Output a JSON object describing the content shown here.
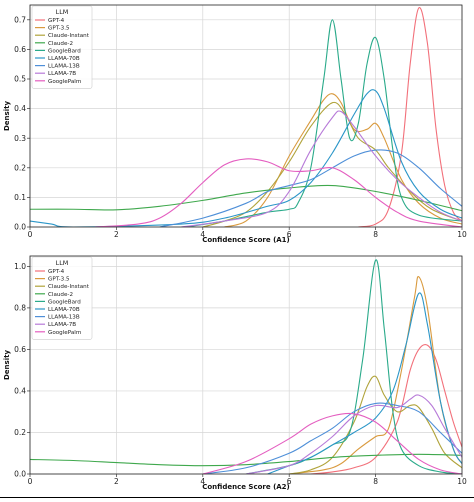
{
  "chart_data": [
    {
      "type": "line",
      "xlabel": "Confidence Score (A1)",
      "ylabel": "Density",
      "xlim": [
        0,
        10
      ],
      "ylim": [
        0,
        0.75
      ],
      "xticks": [
        "0",
        "2",
        "4",
        "6",
        "8",
        "10"
      ],
      "yticks": [
        "0.0",
        "0.1",
        "0.2",
        "0.3",
        "0.4",
        "0.5",
        "0.6",
        "0.7"
      ],
      "grid": true,
      "legend": {
        "title": "LLM",
        "placement": "top-left"
      },
      "series": [
        {
          "name": "GPT-4",
          "color": "#f2707a",
          "points": [
            [
              7.6,
              0
            ],
            [
              8.0,
              0.01
            ],
            [
              8.3,
              0.06
            ],
            [
              8.6,
              0.25
            ],
            [
              8.8,
              0.55
            ],
            [
              9.0,
              0.74
            ],
            [
              9.2,
              0.62
            ],
            [
              9.4,
              0.33
            ],
            [
              9.6,
              0.14
            ],
            [
              9.8,
              0.05
            ],
            [
              10,
              0.02
            ]
          ]
        },
        {
          "name": "GPT-3.5",
          "color": "#d99a3e",
          "points": [
            [
              4.5,
              0
            ],
            [
              5.0,
              0.02
            ],
            [
              5.5,
              0.1
            ],
            [
              6.0,
              0.24
            ],
            [
              6.5,
              0.36
            ],
            [
              6.8,
              0.43
            ],
            [
              7.0,
              0.45
            ],
            [
              7.2,
              0.42
            ],
            [
              7.5,
              0.33
            ],
            [
              7.8,
              0.33
            ],
            [
              8.0,
              0.35
            ],
            [
              8.2,
              0.3
            ],
            [
              8.6,
              0.16
            ],
            [
              9.0,
              0.08
            ],
            [
              9.5,
              0.03
            ],
            [
              10,
              0.01
            ]
          ]
        },
        {
          "name": "Claude-Instant",
          "color": "#b0a33a",
          "points": [
            [
              4.0,
              0
            ],
            [
              4.5,
              0.02
            ],
            [
              5.0,
              0.05
            ],
            [
              5.5,
              0.12
            ],
            [
              6.0,
              0.22
            ],
            [
              6.5,
              0.34
            ],
            [
              7.0,
              0.42
            ],
            [
              7.3,
              0.38
            ],
            [
              7.6,
              0.3
            ],
            [
              8.0,
              0.26
            ],
            [
              8.3,
              0.2
            ],
            [
              8.8,
              0.12
            ],
            [
              9.3,
              0.06
            ],
            [
              10,
              0.02
            ]
          ]
        },
        {
          "name": "Claude-2",
          "color": "#3fa84d",
          "points": [
            [
              0,
              0.06
            ],
            [
              1.0,
              0.06
            ],
            [
              2.0,
              0.058
            ],
            [
              3.0,
              0.07
            ],
            [
              4.0,
              0.09
            ],
            [
              5.0,
              0.115
            ],
            [
              6.0,
              0.132
            ],
            [
              7.0,
              0.14
            ],
            [
              8.0,
              0.12
            ],
            [
              9.0,
              0.09
            ],
            [
              10,
              0.055
            ]
          ]
        },
        {
          "name": "GoogleBard",
          "color": "#2aaa8a",
          "points": [
            [
              3.6,
              0
            ],
            [
              4.5,
              0.02
            ],
            [
              5.5,
              0.05
            ],
            [
              6.0,
              0.06
            ],
            [
              6.2,
              0.08
            ],
            [
              6.5,
              0.2
            ],
            [
              6.8,
              0.5
            ],
            [
              7.0,
              0.7
            ],
            [
              7.2,
              0.5
            ],
            [
              7.4,
              0.3
            ],
            [
              7.6,
              0.35
            ],
            [
              7.8,
              0.55
            ],
            [
              8.0,
              0.64
            ],
            [
              8.2,
              0.5
            ],
            [
              8.4,
              0.26
            ],
            [
              8.6,
              0.1
            ],
            [
              9.0,
              0.04
            ],
            [
              10,
              0.02
            ]
          ]
        },
        {
          "name": "LLAMA-70B",
          "color": "#2b96c8",
          "points": [
            [
              0,
              0.02
            ],
            [
              0.5,
              0.01
            ],
            [
              1.0,
              0
            ],
            [
              3.5,
              0.01
            ],
            [
              4.5,
              0.03
            ],
            [
              5.5,
              0.07
            ],
            [
              6.0,
              0.09
            ],
            [
              6.5,
              0.15
            ],
            [
              7.0,
              0.25
            ],
            [
              7.5,
              0.38
            ],
            [
              7.8,
              0.45
            ],
            [
              8.0,
              0.46
            ],
            [
              8.2,
              0.4
            ],
            [
              8.6,
              0.22
            ],
            [
              9.0,
              0.12
            ],
            [
              9.5,
              0.06
            ],
            [
              10,
              0.03
            ]
          ]
        },
        {
          "name": "LLAMA-13B",
          "color": "#4e8fd8",
          "points": [
            [
              3.0,
              0
            ],
            [
              4.0,
              0.03
            ],
            [
              5.0,
              0.08
            ],
            [
              5.5,
              0.12
            ],
            [
              6.0,
              0.14
            ],
            [
              6.5,
              0.16
            ],
            [
              7.0,
              0.2
            ],
            [
              7.5,
              0.24
            ],
            [
              8.0,
              0.26
            ],
            [
              8.5,
              0.25
            ],
            [
              9.0,
              0.2
            ],
            [
              9.5,
              0.13
            ],
            [
              10,
              0.07
            ]
          ]
        },
        {
          "name": "LLAMA-7B",
          "color": "#b77ad8",
          "points": [
            [
              3.5,
              0
            ],
            [
              4.5,
              0.02
            ],
            [
              5.5,
              0.05
            ],
            [
              6.0,
              0.12
            ],
            [
              6.5,
              0.26
            ],
            [
              7.0,
              0.37
            ],
            [
              7.2,
              0.39
            ],
            [
              7.5,
              0.34
            ],
            [
              8.0,
              0.24
            ],
            [
              8.5,
              0.16
            ],
            [
              9.0,
              0.1
            ],
            [
              9.5,
              0.05
            ],
            [
              10,
              0.02
            ]
          ]
        },
        {
          "name": "GooglePalm",
          "color": "#e45ec0",
          "points": [
            [
              1.5,
              0
            ],
            [
              2.5,
              0.01
            ],
            [
              3.0,
              0.03
            ],
            [
              3.5,
              0.08
            ],
            [
              4.0,
              0.15
            ],
            [
              4.5,
              0.21
            ],
            [
              5.0,
              0.23
            ],
            [
              5.5,
              0.22
            ],
            [
              6.0,
              0.19
            ],
            [
              6.5,
              0.19
            ],
            [
              7.0,
              0.2
            ],
            [
              7.5,
              0.16
            ],
            [
              8.0,
              0.1
            ],
            [
              8.5,
              0.05
            ],
            [
              9.0,
              0.02
            ],
            [
              10,
              0
            ]
          ]
        }
      ]
    },
    {
      "type": "line",
      "xlabel": "Confidence Score (A2)",
      "ylabel": "Density",
      "xlim": [
        0,
        10
      ],
      "ylim": [
        0,
        1.05
      ],
      "xticks": [
        "0",
        "2",
        "4",
        "6",
        "8",
        "10"
      ],
      "yticks": [
        "0.0",
        "0.2",
        "0.4",
        "0.6",
        "0.8",
        "1.0"
      ],
      "grid": true,
      "legend": {
        "title": "LLM",
        "placement": "top-left"
      },
      "series": [
        {
          "name": "GPT-4",
          "color": "#f2707a",
          "points": [
            [
              6.5,
              0
            ],
            [
              7.0,
              0.01
            ],
            [
              7.5,
              0.03
            ],
            [
              8.0,
              0.08
            ],
            [
              8.5,
              0.25
            ],
            [
              8.8,
              0.5
            ],
            [
              9.0,
              0.6
            ],
            [
              9.2,
              0.62
            ],
            [
              9.4,
              0.55
            ],
            [
              9.6,
              0.4
            ],
            [
              9.8,
              0.25
            ],
            [
              10,
              0.13
            ]
          ]
        },
        {
          "name": "GPT-3.5",
          "color": "#d99a3e",
          "points": [
            [
              6.0,
              0
            ],
            [
              6.8,
              0.02
            ],
            [
              7.2,
              0.05
            ],
            [
              7.6,
              0.12
            ],
            [
              8.0,
              0.18
            ],
            [
              8.3,
              0.22
            ],
            [
              8.6,
              0.5
            ],
            [
              8.9,
              0.85
            ],
            [
              9.0,
              0.95
            ],
            [
              9.2,
              0.8
            ],
            [
              9.5,
              0.35
            ],
            [
              9.8,
              0.12
            ],
            [
              10,
              0.05
            ]
          ]
        },
        {
          "name": "Claude-Instant",
          "color": "#b0a33a",
          "points": [
            [
              6.0,
              0
            ],
            [
              6.5,
              0.02
            ],
            [
              7.0,
              0.08
            ],
            [
              7.5,
              0.25
            ],
            [
              7.8,
              0.42
            ],
            [
              8.0,
              0.47
            ],
            [
              8.2,
              0.38
            ],
            [
              8.5,
              0.3
            ],
            [
              8.8,
              0.33
            ],
            [
              9.0,
              0.32
            ],
            [
              9.3,
              0.22
            ],
            [
              9.6,
              0.1
            ],
            [
              10,
              0.03
            ]
          ]
        },
        {
          "name": "Claude-2",
          "color": "#3fa84d",
          "points": [
            [
              0,
              0.07
            ],
            [
              1.0,
              0.065
            ],
            [
              2.0,
              0.055
            ],
            [
              3.0,
              0.045
            ],
            [
              4.0,
              0.04
            ],
            [
              5.0,
              0.045
            ],
            [
              6.0,
              0.06
            ],
            [
              7.0,
              0.08
            ],
            [
              8.0,
              0.09
            ],
            [
              9.0,
              0.095
            ],
            [
              10,
              0.09
            ]
          ]
        },
        {
          "name": "GoogleBard",
          "color": "#2aaa8a",
          "points": [
            [
              5.0,
              0
            ],
            [
              6.0,
              0.04
            ],
            [
              6.5,
              0.08
            ],
            [
              7.0,
              0.14
            ],
            [
              7.4,
              0.2
            ],
            [
              7.7,
              0.55
            ],
            [
              8.0,
              1.03
            ],
            [
              8.2,
              0.7
            ],
            [
              8.4,
              0.3
            ],
            [
              8.6,
              0.12
            ],
            [
              9.0,
              0.04
            ],
            [
              9.5,
              0.01
            ],
            [
              10,
              0
            ]
          ]
        },
        {
          "name": "LLAMA-70B",
          "color": "#2b96c8",
          "points": [
            [
              5.5,
              0
            ],
            [
              6.0,
              0.04
            ],
            [
              6.5,
              0.08
            ],
            [
              7.0,
              0.14
            ],
            [
              7.5,
              0.2
            ],
            [
              8.0,
              0.27
            ],
            [
              8.4,
              0.4
            ],
            [
              8.7,
              0.62
            ],
            [
              9.0,
              0.87
            ],
            [
              9.2,
              0.72
            ],
            [
              9.5,
              0.35
            ],
            [
              9.8,
              0.12
            ],
            [
              10,
              0.05
            ]
          ]
        },
        {
          "name": "LLAMA-13B",
          "color": "#4e8fd8",
          "points": [
            [
              4.0,
              0
            ],
            [
              5.0,
              0.03
            ],
            [
              6.0,
              0.1
            ],
            [
              6.5,
              0.16
            ],
            [
              7.0,
              0.22
            ],
            [
              7.5,
              0.3
            ],
            [
              8.0,
              0.34
            ],
            [
              8.5,
              0.33
            ],
            [
              9.0,
              0.3
            ],
            [
              9.5,
              0.2
            ],
            [
              10,
              0.1
            ]
          ]
        },
        {
          "name": "LLAMA-7B",
          "color": "#b77ad8",
          "points": [
            [
              5.0,
              0
            ],
            [
              6.0,
              0.04
            ],
            [
              6.5,
              0.1
            ],
            [
              7.0,
              0.18
            ],
            [
              7.5,
              0.28
            ],
            [
              8.0,
              0.33
            ],
            [
              8.5,
              0.32
            ],
            [
              8.8,
              0.36
            ],
            [
              9.0,
              0.38
            ],
            [
              9.3,
              0.33
            ],
            [
              9.6,
              0.22
            ],
            [
              10,
              0.08
            ]
          ]
        },
        {
          "name": "GooglePalm",
          "color": "#e45ec0",
          "points": [
            [
              4.0,
              0
            ],
            [
              5.0,
              0.06
            ],
            [
              6.0,
              0.17
            ],
            [
              6.5,
              0.24
            ],
            [
              7.0,
              0.28
            ],
            [
              7.5,
              0.29
            ],
            [
              8.0,
              0.25
            ],
            [
              8.5,
              0.16
            ],
            [
              9.0,
              0.07
            ],
            [
              9.5,
              0.02
            ],
            [
              10,
              0
            ]
          ]
        }
      ]
    }
  ]
}
